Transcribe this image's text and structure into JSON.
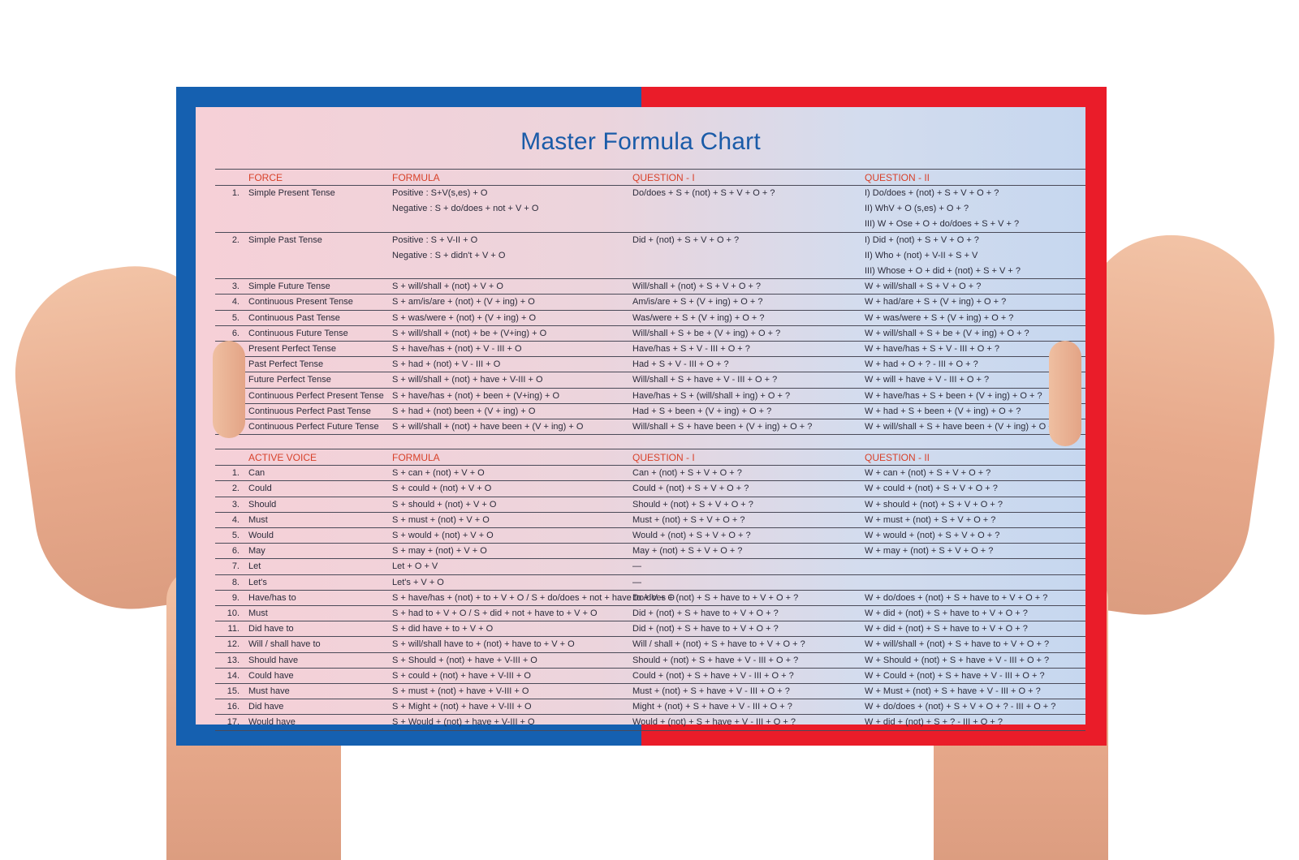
{
  "title": "Master Formula Chart",
  "section1": {
    "headers": [
      "FORCE",
      "FORMULA",
      "QUESTION - I",
      "QUESTION - II"
    ],
    "rows": [
      {
        "num": "1.",
        "name": "Simple Present Tense",
        "f": [
          "Positive : S+V(s,es) + O",
          "Negative : S + do/does + not + V + O"
        ],
        "q1": [
          "Do/does + S + (not) + S + V + O + ?"
        ],
        "q2": [
          "I) Do/does + (not) + S + V + O + ?",
          "II) WhV + O (s,es) + O + ?",
          "III) W + Ose + O + do/does + S + V + ?"
        ]
      },
      {
        "num": "2.",
        "name": "Simple Past Tense",
        "f": [
          "Positive : S + V-II + O",
          "Negative : S + didn't + V + O"
        ],
        "q1": [
          "Did + (not) + S + V + O + ?"
        ],
        "q2": [
          "I) Did + (not) + S + V + O + ?",
          "II) Who + (not) + V-II + S + V",
          "III) Whose + O + did + (not) + S + V + ?"
        ]
      },
      {
        "num": "3.",
        "name": "Simple Future Tense",
        "f": [
          "S + will/shall + (not) + V + O"
        ],
        "q1": [
          "Will/shall + (not) + S + V + O + ?"
        ],
        "q2": [
          "W + will/shall + S + V + O + ?"
        ]
      },
      {
        "num": "4.",
        "name": "Continuous Present Tense",
        "f": [
          "S + am/is/are + (not) + (V + ing) + O"
        ],
        "q1": [
          "Am/is/are + S + (V + ing) + O + ?"
        ],
        "q2": [
          "W + had/are + S + (V + ing) + O + ?"
        ]
      },
      {
        "num": "5.",
        "name": "Continuous Past Tense",
        "f": [
          "S + was/were + (not) + (V + ing) + O"
        ],
        "q1": [
          "Was/were + S + (V + ing) + O + ?"
        ],
        "q2": [
          "W + was/were + S + (V + ing) + O + ?"
        ]
      },
      {
        "num": "6.",
        "name": "Continuous Future Tense",
        "f": [
          "S + will/shall + (not) + be + (V+ing) + O"
        ],
        "q1": [
          "Will/shall + S + be + (V + ing) + O + ?"
        ],
        "q2": [
          "W + will/shall + S + be + (V + ing) + O + ?"
        ]
      },
      {
        "num": "7.",
        "name": "Present Perfect Tense",
        "f": [
          "S + have/has + (not) + V - III + O"
        ],
        "q1": [
          "Have/has + S + V - III + O + ?"
        ],
        "q2": [
          "W + have/has + S + V - III + O + ?"
        ]
      },
      {
        "num": "8.",
        "name": "Past Perfect Tense",
        "f": [
          "S + had + (not) + V - III + O"
        ],
        "q1": [
          "Had + S + V - III + O + ?"
        ],
        "q2": [
          "W + had + O + ? - III + O + ?"
        ]
      },
      {
        "num": "9.",
        "name": "Future Perfect Tense",
        "f": [
          "S + will/shall + (not) + have + V-III + O"
        ],
        "q1": [
          "Will/shall + S + have + V - III + O + ?"
        ],
        "q2": [
          "W + will + have + V - III + O + ?"
        ]
      },
      {
        "num": "10.",
        "name": "Continuous Perfect Present Tense",
        "f": [
          "S + have/has + (not) + been + (V+ing) + O"
        ],
        "q1": [
          "Have/has + S + (will/shall + ing) + O + ?"
        ],
        "q2": [
          "W + have/has + S + been + (V + ing) + O + ?"
        ]
      },
      {
        "num": "11.",
        "name": "Continuous Perfect Past Tense",
        "f": [
          "S + had + (not) been + (V + ing) + O"
        ],
        "q1": [
          "Had + S + been + (V + ing) + O + ?"
        ],
        "q2": [
          "W + had + S + been + (V + ing) + O + ?"
        ]
      },
      {
        "num": "12.",
        "name": "Continuous Perfect Future Tense",
        "f": [
          "S + will/shall + (not) + have been + (V + ing) + O"
        ],
        "q1": [
          "Will/shall + S + have been + (V + ing) + O + ?"
        ],
        "q2": [
          "W + will/shall + S + have been + (V + ing) + O + ?"
        ]
      }
    ]
  },
  "section2": {
    "headers": [
      "ACTIVE VOICE",
      "FORMULA",
      "QUESTION - I",
      "QUESTION - II"
    ],
    "rows": [
      {
        "num": "1.",
        "name": "Can",
        "f": "S + can + (not) + V + O",
        "q1": "Can + (not) + S + V + O + ?",
        "q2": "W + can + (not) + S + V + O + ?"
      },
      {
        "num": "2.",
        "name": "Could",
        "f": "S + could + (not) + V + O",
        "q1": "Could + (not) + S + V + O + ?",
        "q2": "W + could + (not) + S + V + O + ?"
      },
      {
        "num": "3.",
        "name": "Should",
        "f": "S + should + (not) + V + O",
        "q1": "Should + (not) + S + V + O + ?",
        "q2": "W + should + (not) + S + V + O + ?"
      },
      {
        "num": "4.",
        "name": "Must",
        "f": "S + must + (not) + V + O",
        "q1": "Must + (not) + S + V + O + ?",
        "q2": "W + must + (not) + S + V + O + ?"
      },
      {
        "num": "5.",
        "name": "Would",
        "f": "S + would + (not) + V + O",
        "q1": "Would + (not) + S + V + O + ?",
        "q2": "W + would + (not) + S + V + O + ?"
      },
      {
        "num": "6.",
        "name": "May",
        "f": "S + may + (not) + V + O",
        "q1": "May + (not) + S + V + O + ?",
        "q2": "W + may + (not) + S + V + O + ?"
      },
      {
        "num": "7.",
        "name": "Let",
        "f": "Let + O + V",
        "q1": "—",
        "q2": ""
      },
      {
        "num": "8.",
        "name": "Let's",
        "f": "Let's + V + O",
        "q1": "—",
        "q2": ""
      },
      {
        "num": "9.",
        "name": "Have/has to",
        "f": "S + have/has + (not) + to + V + O / S + do/does + not + have to + V + O",
        "q1": "Do/does + (not) + S + have to + V + O + ?",
        "q2": "W + do/does + (not) + S + have to + V + O + ?"
      },
      {
        "num": "10.",
        "name": "Must",
        "f": "S + had to + V + O / S + did + not + have to + V + O",
        "q1": "Did + (not) + S + have to + V + O + ?",
        "q2": "W + did + (not) + S + have to + V + O + ?"
      },
      {
        "num": "11.",
        "name": "Did have to",
        "f": "S + did have + to + V + O",
        "q1": "Did + (not) + S + have to + V + O + ?",
        "q2": "W + did + (not) + S + have to + V + O + ?"
      },
      {
        "num": "12.",
        "name": "Will / shall have to",
        "f": "S + will/shall have to + (not) + have to + V + O",
        "q1": "Will / shall + (not) + S + have to + V + O + ?",
        "q2": "W + will/shall + (not) + S + have to + V + O + ?"
      },
      {
        "num": "13.",
        "name": "Should have",
        "f": "S + Should + (not) + have + V-III + O",
        "q1": "Should + (not) + S + have + V - III + O + ?",
        "q2": "W + Should + (not) + S + have + V - III + O + ?"
      },
      {
        "num": "14.",
        "name": "Could have",
        "f": "S + could + (not) + have + V-III + O",
        "q1": "Could + (not) + S + have + V - III + O + ?",
        "q2": "W + Could + (not) + S + have + V - III + O + ?"
      },
      {
        "num": "15.",
        "name": "Must have",
        "f": "S + must + (not) + have + V-III + O",
        "q1": "Must + (not) + S + have + V - III + O + ?",
        "q2": "W + Must + (not) + S + have + V - III + O + ?"
      },
      {
        "num": "16.",
        "name": "Did have",
        "f": "S + Might + (not) + have + V-III + O",
        "q1": "Might + (not) + S + have + V - III + O + ?",
        "q2": "W + do/does + (not) + S + V + O + ? - III + O + ?"
      },
      {
        "num": "17.",
        "name": "Would have",
        "f": "S + Would + (not) + have + V-III + O",
        "q1": "Would + (not) + S + have + V - III + O + ?",
        "q2": "W + did + (not) + S + ? - III + O + ?"
      }
    ]
  },
  "colors": {
    "blue_border": "#1560b0",
    "red_border": "#ea1c29",
    "title": "#1a5ba8",
    "header_text": "#d8412a"
  }
}
